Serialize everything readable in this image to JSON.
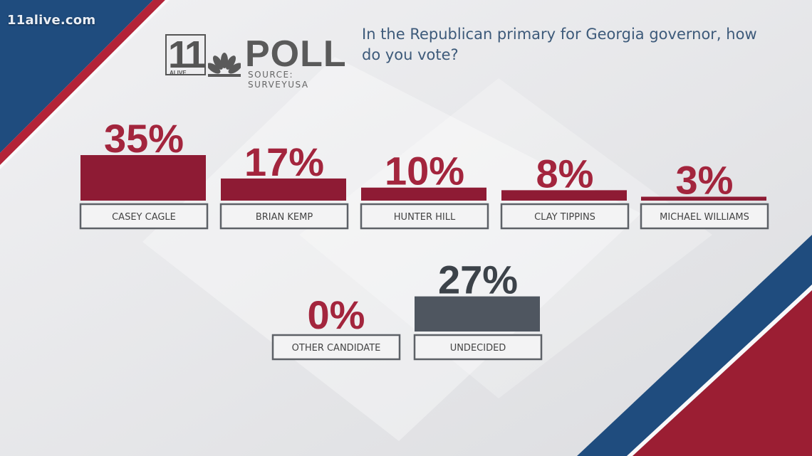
{
  "watermark": "11alive.com",
  "logo": {
    "number": "11",
    "alive": "ALIVE",
    "poll": "POLL",
    "source": "SOURCE: SURVEYUSA"
  },
  "question": "In the Republican primary for Georgia governor, how do you vote?",
  "colors": {
    "candidate_bar": "#8e1b34",
    "candidate_pct": "#a3253d",
    "undecided_bar": "#4f5660",
    "undecided_pct": "#3c4249",
    "label_text": "#444444",
    "stripe_blue": "#1f4c7e",
    "stripe_red": "#9b1e33"
  },
  "chart_data": {
    "type": "bar",
    "categories": [
      "CASEY CAGLE",
      "BRIAN KEMP",
      "HUNTER HILL",
      "CLAY TIPPINS",
      "MICHAEL WILLIAMS",
      "OTHER CANDIDATE",
      "UNDECIDED"
    ],
    "values": [
      35,
      17,
      10,
      8,
      3,
      0,
      27
    ],
    "value_labels": [
      "35%",
      "17%",
      "10%",
      "8%",
      "3%",
      "0%",
      "27%"
    ],
    "title": "In the Republican primary for Georgia governor, how do you vote?",
    "ylim": [
      0,
      35
    ],
    "grid": false,
    "legend": "none"
  }
}
